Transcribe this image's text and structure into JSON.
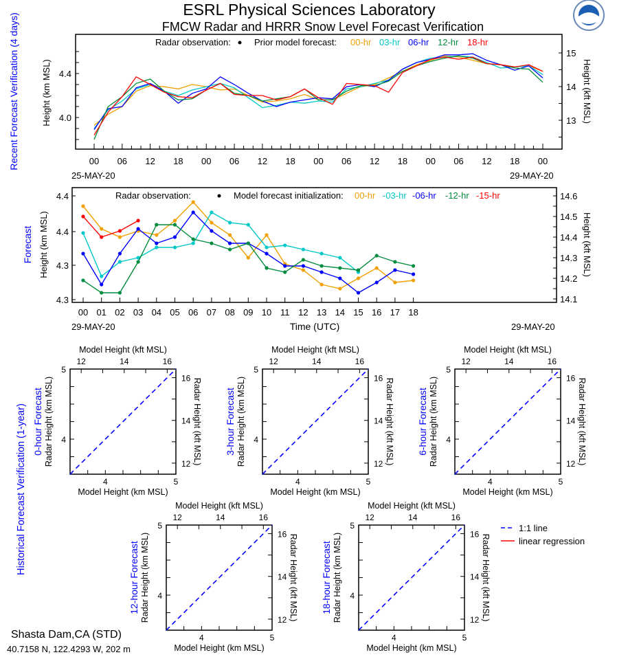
{
  "header": {
    "title": "ESRL Physical Sciences Laboratory",
    "subtitle": "FMCW Radar and HRRR Snow Level Forecast Verification",
    "logo_text": "NOAA"
  },
  "colors": {
    "00-hr": "#f0a000",
    "03-hr": "#00c8c8",
    "06-hr": "#0000ff",
    "12-hr": "#008c3c",
    "15-hr": "#ff0000",
    "18-hr": "#ff0000",
    "title_blue": "#0000ff"
  },
  "chart_data": [
    {
      "type": "line",
      "section_label": "Recent Forecast Verification (4 days)",
      "ylabel": "Height (km MSL)",
      "ylabel_right": "Height (kft MSL)",
      "legend": {
        "obs_label": "Radar observation:",
        "forecast_label": "Prior model forecast:",
        "entries": [
          "00-hr",
          "03-hr",
          "06-hr",
          "12-hr",
          "18-hr"
        ]
      },
      "x_tick_labels": [
        "00",
        "06",
        "12",
        "18",
        "00",
        "06",
        "12",
        "18",
        "00",
        "06",
        "12",
        "18",
        "00",
        "06",
        "12",
        "18",
        "00"
      ],
      "x_start_label": "25-MAY-20",
      "x_end_label": "29-MAY-20",
      "x_hours": [
        0,
        3,
        6,
        9,
        12,
        15,
        18,
        21,
        24,
        27,
        30,
        33,
        36,
        39,
        42,
        45,
        48,
        51,
        54,
        57,
        60,
        63,
        66,
        69,
        72,
        75,
        78,
        81,
        84,
        87,
        90,
        93,
        96
      ],
      "y_ticks": [
        "4.0",
        "4.4"
      ],
      "y_right_ticks": [
        "13",
        "14",
        "15"
      ],
      "ylim": [
        3.8,
        4.7
      ],
      "series": [
        {
          "name": "00-hr",
          "values": [
            3.93,
            4.03,
            4.1,
            4.24,
            4.29,
            4.28,
            4.26,
            4.3,
            4.28,
            4.25,
            4.26,
            4.2,
            4.14,
            4.15,
            4.17,
            4.21,
            4.16,
            4.16,
            4.22,
            4.28,
            4.3,
            4.36,
            4.42,
            4.48,
            4.52,
            4.56,
            4.55,
            4.52,
            4.49,
            4.48,
            4.46,
            4.47,
            4.42
          ]
        },
        {
          "name": "03-hr",
          "values": [
            3.9,
            4.07,
            4.15,
            4.26,
            4.3,
            4.24,
            4.2,
            4.25,
            4.28,
            4.31,
            4.27,
            4.18,
            4.09,
            4.11,
            4.14,
            4.13,
            4.15,
            4.14,
            4.26,
            4.28,
            4.31,
            4.34,
            4.44,
            4.5,
            4.54,
            4.55,
            4.56,
            4.55,
            4.5,
            4.45,
            4.46,
            4.47,
            4.39
          ]
        },
        {
          "name": "06-hr",
          "values": [
            3.89,
            4.08,
            4.1,
            4.27,
            4.31,
            4.24,
            4.13,
            4.22,
            4.26,
            4.37,
            4.3,
            4.22,
            4.15,
            4.1,
            4.14,
            4.16,
            4.18,
            4.17,
            4.28,
            4.3,
            4.28,
            4.34,
            4.44,
            4.5,
            4.53,
            4.57,
            4.57,
            4.58,
            4.52,
            4.48,
            4.43,
            4.47,
            4.36
          ]
        },
        {
          "name": "12-hr",
          "values": [
            3.8,
            4.1,
            4.19,
            4.31,
            4.35,
            4.24,
            4.16,
            4.17,
            4.25,
            4.31,
            4.22,
            4.2,
            4.15,
            4.17,
            4.19,
            4.26,
            4.16,
            4.16,
            4.24,
            4.29,
            4.29,
            4.33,
            4.42,
            4.47,
            4.51,
            4.54,
            4.56,
            4.54,
            4.49,
            4.48,
            4.45,
            4.44,
            4.32
          ]
        },
        {
          "name": "18-hr",
          "values": [
            3.84,
            4.05,
            4.19,
            4.37,
            4.3,
            4.23,
            4.19,
            4.18,
            4.25,
            4.31,
            4.21,
            4.2,
            4.2,
            4.16,
            4.19,
            4.26,
            4.18,
            4.12,
            4.31,
            4.3,
            4.29,
            4.23,
            4.41,
            4.47,
            4.53,
            4.55,
            4.53,
            4.55,
            4.49,
            4.48,
            4.46,
            4.48,
            4.42
          ]
        }
      ]
    },
    {
      "type": "line",
      "section_label": "Forecast",
      "ylabel": "Height (km MSL)",
      "ylabel_right": "Height (kft MSL)",
      "xlabel": "Time (UTC)",
      "legend": {
        "obs_label": "Radar observation:",
        "forecast_label": "Model forecast initialization:",
        "entries": [
          "00-hr",
          "-03-hr",
          "-06-hr",
          "-12-hr",
          "-15-hr"
        ]
      },
      "categories": [
        "00",
        "01",
        "02",
        "03",
        "04",
        "05",
        "06",
        "07",
        "08",
        "09",
        "10",
        "11",
        "12",
        "13",
        "14",
        "15",
        "16",
        "17",
        "18"
      ],
      "x_start_label": "29-MAY-20",
      "x_end_label": "29-MAY-20",
      "y_ticks": [
        "4.4",
        "4.4",
        "4.3",
        "4.3"
      ],
      "y_right_ticks": [
        "14.6",
        "14.5",
        "14.4",
        "14.3",
        "14.2",
        "14.1"
      ],
      "y_units": "kft MSL",
      "ylim": [
        14.08,
        14.64
      ],
      "series": [
        {
          "name": "00-hr",
          "values": [
            14.55,
            14.44,
            14.4,
            14.43,
            14.41,
            14.48,
            14.57,
            14.47,
            14.41,
            14.3,
            14.41,
            14.27,
            14.24,
            14.17,
            14.15,
            14.2,
            14.25,
            14.18,
            14.19
          ]
        },
        {
          "name": "-03-hr",
          "values": [
            14.42,
            14.21,
            14.28,
            14.3,
            14.35,
            14.35,
            14.37,
            14.52,
            14.47,
            14.46,
            14.35,
            14.36,
            14.34,
            14.32,
            14.3,
            14.23,
            null,
            null,
            null
          ]
        },
        {
          "name": "-06-hr",
          "values": [
            14.32,
            14.17,
            14.32,
            14.44,
            14.37,
            14.4,
            14.52,
            14.43,
            14.37,
            14.37,
            14.32,
            14.26,
            14.26,
            14.23,
            14.2,
            14.13,
            14.18,
            14.24,
            14.22
          ]
        },
        {
          "name": "-12-hr",
          "values": [
            14.19,
            14.13,
            14.13,
            14.28,
            14.46,
            14.46,
            14.39,
            14.37,
            14.34,
            14.37,
            14.25,
            14.23,
            14.29,
            14.26,
            14.25,
            14.24,
            14.31,
            14.28,
            14.26
          ]
        },
        {
          "name": "-15-hr",
          "values": [
            14.5,
            14.4,
            14.43,
            14.48,
            null,
            null,
            null,
            null,
            null,
            null,
            null,
            null,
            null,
            null,
            null,
            null,
            null,
            null,
            null
          ]
        }
      ]
    }
  ],
  "historical": {
    "section_label": "Historical Forecast Verification (1-year)",
    "xlabel_top": "Model Height (kft MSL)",
    "xlabel_bottom": "Model Height (km MSL)",
    "ylabel_left": "Radar Height (km MSL)",
    "ylabel_right": "Radar Height (kft MSL)",
    "x_ticks": [
      "4",
      "5"
    ],
    "y_ticks": [
      "4",
      "5"
    ],
    "kft_ticks": [
      "12",
      "14",
      "16"
    ],
    "xlim": [
      3.5,
      5
    ],
    "ylim": [
      3.5,
      5
    ],
    "panels": [
      {
        "title": "0-hour Forecast"
      },
      {
        "title": "3-hour Forecast"
      },
      {
        "title": "6-hour Forecast"
      },
      {
        "title": "12-hour Forecast"
      },
      {
        "title": "18-hour Forecast"
      }
    ],
    "legend": {
      "one_to_one": "1:1 line",
      "regression": "linear regression"
    }
  },
  "footer": {
    "site": "Shasta Dam,CA (STD)",
    "coords": "40.7158 N, 122.4293 W, 202 m"
  }
}
